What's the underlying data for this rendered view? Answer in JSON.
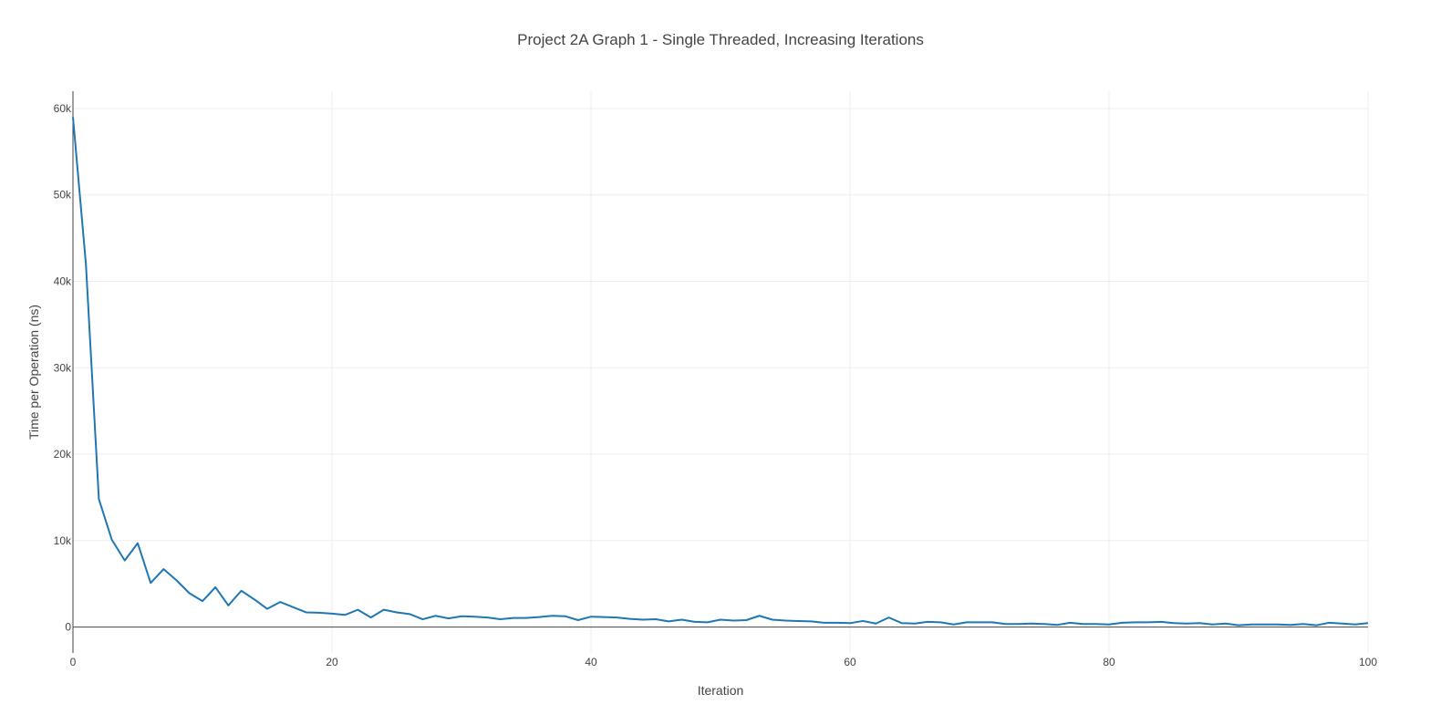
{
  "chart_data": {
    "type": "line",
    "title": "Project 2A Graph 1 -  Single Threaded, Increasing Iterations",
    "xlabel": "Iteration",
    "ylabel": "Time per Operation (ns)",
    "xlim": [
      0,
      100
    ],
    "ylim": [
      -3000,
      62000
    ],
    "grid": true,
    "legend": "none",
    "color": "#1f77b4",
    "x_ticks": [
      {
        "value": 0,
        "label": "0"
      },
      {
        "value": 20,
        "label": "20"
      },
      {
        "value": 40,
        "label": "40"
      },
      {
        "value": 60,
        "label": "60"
      },
      {
        "value": 80,
        "label": "80"
      },
      {
        "value": 100,
        "label": "100"
      }
    ],
    "y_ticks": [
      {
        "value": 0,
        "label": "0"
      },
      {
        "value": 10000,
        "label": "10k"
      },
      {
        "value": 20000,
        "label": "20k"
      },
      {
        "value": 30000,
        "label": "30k"
      },
      {
        "value": 40000,
        "label": "40k"
      },
      {
        "value": 50000,
        "label": "50k"
      },
      {
        "value": 60000,
        "label": "60k"
      }
    ],
    "series": [
      {
        "x": [
          0,
          1,
          2,
          3,
          4,
          5,
          6,
          7,
          8,
          9,
          10,
          11,
          12,
          13,
          14,
          15,
          16,
          17,
          18,
          19,
          20,
          21,
          22,
          23,
          24,
          25,
          26,
          27,
          28,
          29,
          30,
          31,
          32,
          33,
          34,
          35,
          36,
          37,
          38,
          39,
          40,
          41,
          42,
          43,
          44,
          45,
          46,
          47,
          48,
          49,
          50,
          51,
          52,
          53,
          54,
          55,
          56,
          57,
          58,
          59,
          60,
          61,
          62,
          63,
          64,
          65,
          66,
          67,
          68,
          69,
          70,
          71,
          72,
          73,
          74,
          75,
          76,
          77,
          78,
          79,
          80,
          81,
          82,
          83,
          84,
          85,
          86,
          87,
          88,
          89,
          90,
          91,
          92,
          93,
          94,
          95,
          96,
          97,
          98,
          99,
          100
        ],
        "y": [
          59000,
          42000,
          14800,
          10100,
          7700,
          9700,
          5100,
          6700,
          5400,
          3900,
          3000,
          4600,
          2500,
          4200,
          3200,
          2100,
          2900,
          2300,
          1700,
          1650,
          1550,
          1400,
          2000,
          1100,
          2000,
          1700,
          1500,
          900,
          1300,
          1000,
          1250,
          1200,
          1100,
          900,
          1050,
          1050,
          1150,
          1300,
          1250,
          800,
          1200,
          1150,
          1100,
          950,
          850,
          900,
          650,
          850,
          600,
          550,
          850,
          750,
          800,
          1300,
          850,
          750,
          700,
          650,
          500,
          500,
          450,
          700,
          400,
          1100,
          450,
          400,
          600,
          550,
          300,
          550,
          550,
          550,
          350,
          350,
          400,
          350,
          250,
          500,
          350,
          350,
          300,
          500,
          550,
          550,
          600,
          450,
          400,
          450,
          300,
          400,
          200,
          300,
          300,
          300,
          250,
          350,
          200,
          500,
          400,
          300,
          450
        ]
      }
    ]
  }
}
